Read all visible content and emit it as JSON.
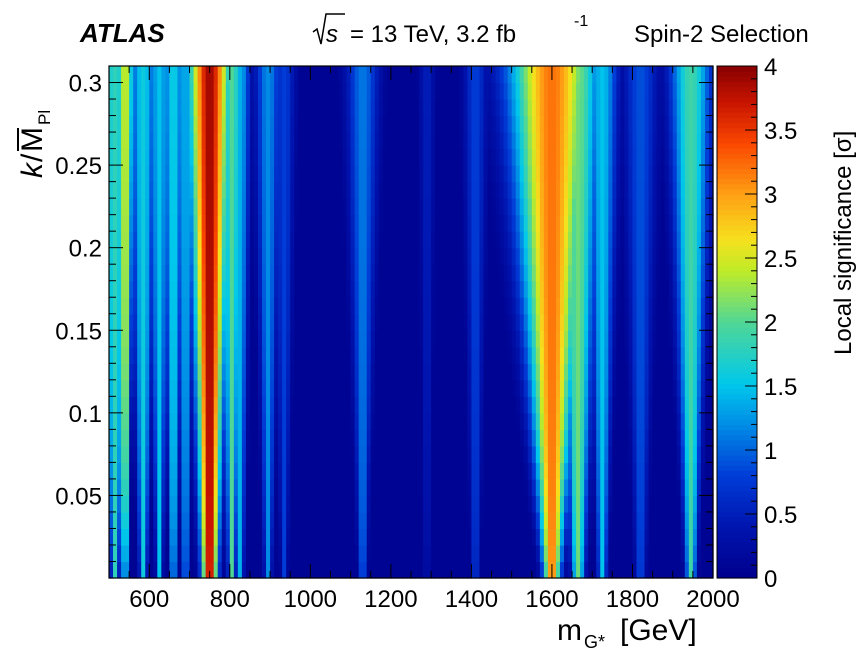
{
  "header": {
    "experiment": "ATLAS",
    "sqrt_label": "s",
    "energy_lumi": "= 13 TeV, 3.2 fb",
    "lumi_exponent": "-1",
    "selection": "Spin-2 Selection"
  },
  "chart_data": {
    "type": "heatmap",
    "xlabel_main": "m",
    "xlabel_sub": "G*",
    "xlabel_unit": "[GeV]",
    "ylabel_k": "k",
    "ylabel_slash": "/",
    "ylabel_M": "M",
    "ylabel_sub": "Pl",
    "colorbar_label": "Local significance [σ]",
    "xlim": [
      500,
      2000
    ],
    "ylim": [
      0.0,
      0.31
    ],
    "zlim": [
      0,
      4
    ],
    "x_ticks": [
      "600",
      "800",
      "1000",
      "1200",
      "1400",
      "1600",
      "1800",
      "2000"
    ],
    "y_ticks": [
      "0.05",
      "0.1",
      "0.15",
      "0.2",
      "0.25",
      "0.3"
    ],
    "z_ticks": [
      "0",
      "0.5",
      "1",
      "1.5",
      "2",
      "2.5",
      "3",
      "3.5",
      "4"
    ],
    "features": [
      {
        "mass": 515,
        "z": 1.8,
        "w0": 6,
        "w1": 25
      },
      {
        "mass": 540,
        "z": 2.5,
        "w0": 4,
        "w1": 12
      },
      {
        "mass": 585,
        "z": 1.6,
        "w0": 6,
        "w1": 18
      },
      {
        "mass": 625,
        "z": 1.5,
        "w0": 5,
        "w1": 14
      },
      {
        "mass": 660,
        "z": 1.6,
        "w0": 5,
        "w1": 16
      },
      {
        "mass": 690,
        "z": 1.4,
        "w0": 5,
        "w1": 12
      },
      {
        "mass": 750,
        "z": 3.9,
        "w0": 13,
        "w1": 24
      },
      {
        "mass": 805,
        "z": 2.0,
        "w0": 6,
        "w1": 14
      },
      {
        "mass": 825,
        "z": 1.4,
        "w0": 6,
        "w1": 12
      },
      {
        "mass": 895,
        "z": 1.2,
        "w0": 6,
        "w1": 16
      },
      {
        "mass": 935,
        "z": 0.8,
        "w0": 5,
        "w1": 14
      },
      {
        "mass": 1130,
        "z": 1.1,
        "w0": 6,
        "w1": 22
      },
      {
        "mass": 1290,
        "z": 0.5,
        "w0": 4,
        "w1": 10
      },
      {
        "mass": 1410,
        "z": 0.8,
        "w0": 6,
        "w1": 14
      },
      {
        "mass": 1600,
        "z": 3.2,
        "w0": 14,
        "w1": 60
      },
      {
        "mass": 1665,
        "z": 2.1,
        "w0": 10,
        "w1": 30
      },
      {
        "mass": 1725,
        "z": 1.5,
        "w0": 7,
        "w1": 20
      },
      {
        "mass": 1820,
        "z": 0.9,
        "w0": 8,
        "w1": 22
      },
      {
        "mass": 1945,
        "z": 1.9,
        "w0": 8,
        "w1": 28
      }
    ]
  }
}
